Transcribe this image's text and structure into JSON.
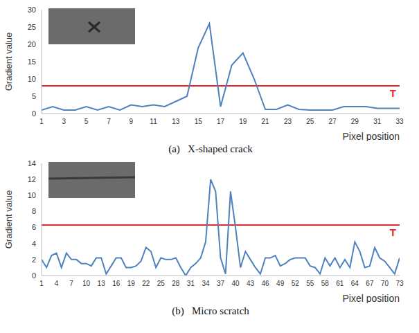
{
  "chart_data": [
    {
      "type": "line",
      "caption": "(a)   X-shaped crack",
      "x_label": "Pixel position",
      "y_label": "Gradient value",
      "x": [
        1,
        2,
        3,
        4,
        5,
        6,
        7,
        8,
        9,
        10,
        11,
        12,
        13,
        14,
        15,
        16,
        17,
        18,
        19,
        20,
        21,
        22,
        23,
        24,
        25,
        26,
        27,
        28,
        29,
        30,
        31,
        32,
        33
      ],
      "values": [
        1,
        2,
        1,
        1,
        2,
        1,
        2,
        1,
        2.5,
        2,
        2.5,
        2,
        3.5,
        5,
        19,
        26,
        2,
        14,
        17.5,
        10,
        1.2,
        1.2,
        2.5,
        1.2,
        1,
        1,
        1,
        2,
        2,
        2,
        1.5,
        1.5,
        1.5
      ],
      "color": "#4f81bd",
      "xlim": [
        1,
        33
      ],
      "xticks": [
        1,
        3,
        5,
        7,
        9,
        11,
        13,
        15,
        17,
        19,
        21,
        23,
        25,
        27,
        29,
        31,
        33
      ],
      "ylim": [
        0,
        30
      ],
      "yticks": [
        0,
        5,
        10,
        15,
        20,
        25,
        30
      ],
      "threshold": {
        "label": "T",
        "value": 8,
        "color": "#e8262b"
      }
    },
    {
      "type": "line",
      "caption": "(b)   Micro scratch",
      "x_label": "Pixel position",
      "y_label": "Gradient value",
      "x": [
        1,
        2,
        3,
        4,
        5,
        6,
        7,
        8,
        9,
        10,
        11,
        12,
        13,
        14,
        15,
        16,
        17,
        18,
        19,
        20,
        21,
        22,
        23,
        24,
        25,
        26,
        27,
        28,
        29,
        30,
        31,
        32,
        33,
        34,
        35,
        36,
        37,
        38,
        39,
        40,
        41,
        42,
        43,
        44,
        45,
        46,
        47,
        48,
        49,
        50,
        51,
        52,
        53,
        54,
        55,
        56,
        57,
        58,
        59,
        60,
        61,
        62,
        63,
        64,
        65,
        66,
        67,
        68,
        69,
        70,
        71,
        72,
        73
      ],
      "values": [
        2,
        1,
        2.5,
        2.8,
        1,
        2.8,
        2,
        2,
        1.5,
        1.5,
        1.2,
        2.2,
        2.2,
        0.2,
        1.2,
        2.2,
        2.2,
        1,
        1,
        1.2,
        1.8,
        3.5,
        3,
        1,
        2.2,
        2,
        2,
        2.2,
        1,
        0,
        1,
        1.5,
        2.2,
        4.2,
        12,
        10.5,
        2.2,
        0.2,
        10.5,
        6,
        1,
        3,
        2,
        1,
        0.2,
        2.2,
        2.2,
        2.5,
        1.2,
        1.5,
        2,
        2.2,
        2.2,
        2.2,
        1.2,
        1,
        0.2,
        2.2,
        1.2,
        2.2,
        1,
        2,
        1,
        4.2,
        3,
        1,
        1.2,
        3.5,
        2.2,
        1.8,
        1,
        0.2,
        2.2
      ],
      "color": "#4f81bd",
      "xlim": [
        1,
        73
      ],
      "xticks": [
        1,
        4,
        7,
        10,
        13,
        16,
        19,
        22,
        25,
        28,
        31,
        34,
        37,
        40,
        43,
        46,
        49,
        52,
        55,
        58,
        61,
        64,
        67,
        70,
        73
      ],
      "ylim": [
        0,
        14
      ],
      "yticks": [
        0,
        2,
        4,
        6,
        8,
        10,
        12,
        14
      ],
      "threshold": {
        "label": "T",
        "value": 6.3,
        "color": "#e8262b"
      }
    }
  ]
}
